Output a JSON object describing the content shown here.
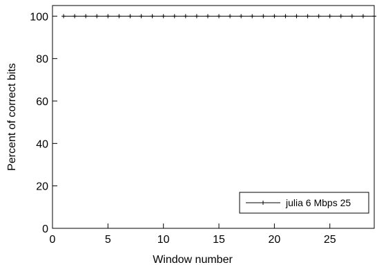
{
  "chart_data": {
    "type": "line",
    "title": "",
    "xlabel": "Window number",
    "ylabel": "Percent of correct bits",
    "xlim": [
      0,
      29
    ],
    "ylim": [
      0,
      105
    ],
    "xticks": [
      0,
      5,
      10,
      15,
      20,
      25
    ],
    "yticks": [
      0,
      20,
      40,
      60,
      80,
      100
    ],
    "grid": false,
    "legend_position": "bottom-right",
    "series": [
      {
        "name": "julia 6 Mbps 25",
        "color": "#000000",
        "marker": "plus",
        "x": [
          1,
          2,
          3,
          4,
          5,
          6,
          7,
          8,
          9,
          10,
          11,
          12,
          13,
          14,
          15,
          16,
          17,
          18,
          19,
          20,
          21,
          22,
          23,
          24,
          25,
          26,
          27,
          28,
          29
        ],
        "y": [
          100,
          100,
          100,
          100,
          100,
          100,
          100,
          100,
          100,
          100,
          100,
          100,
          100,
          100,
          100,
          100,
          100,
          100,
          100,
          100,
          100,
          100,
          100,
          100,
          100,
          100,
          100,
          100,
          100
        ]
      }
    ]
  }
}
